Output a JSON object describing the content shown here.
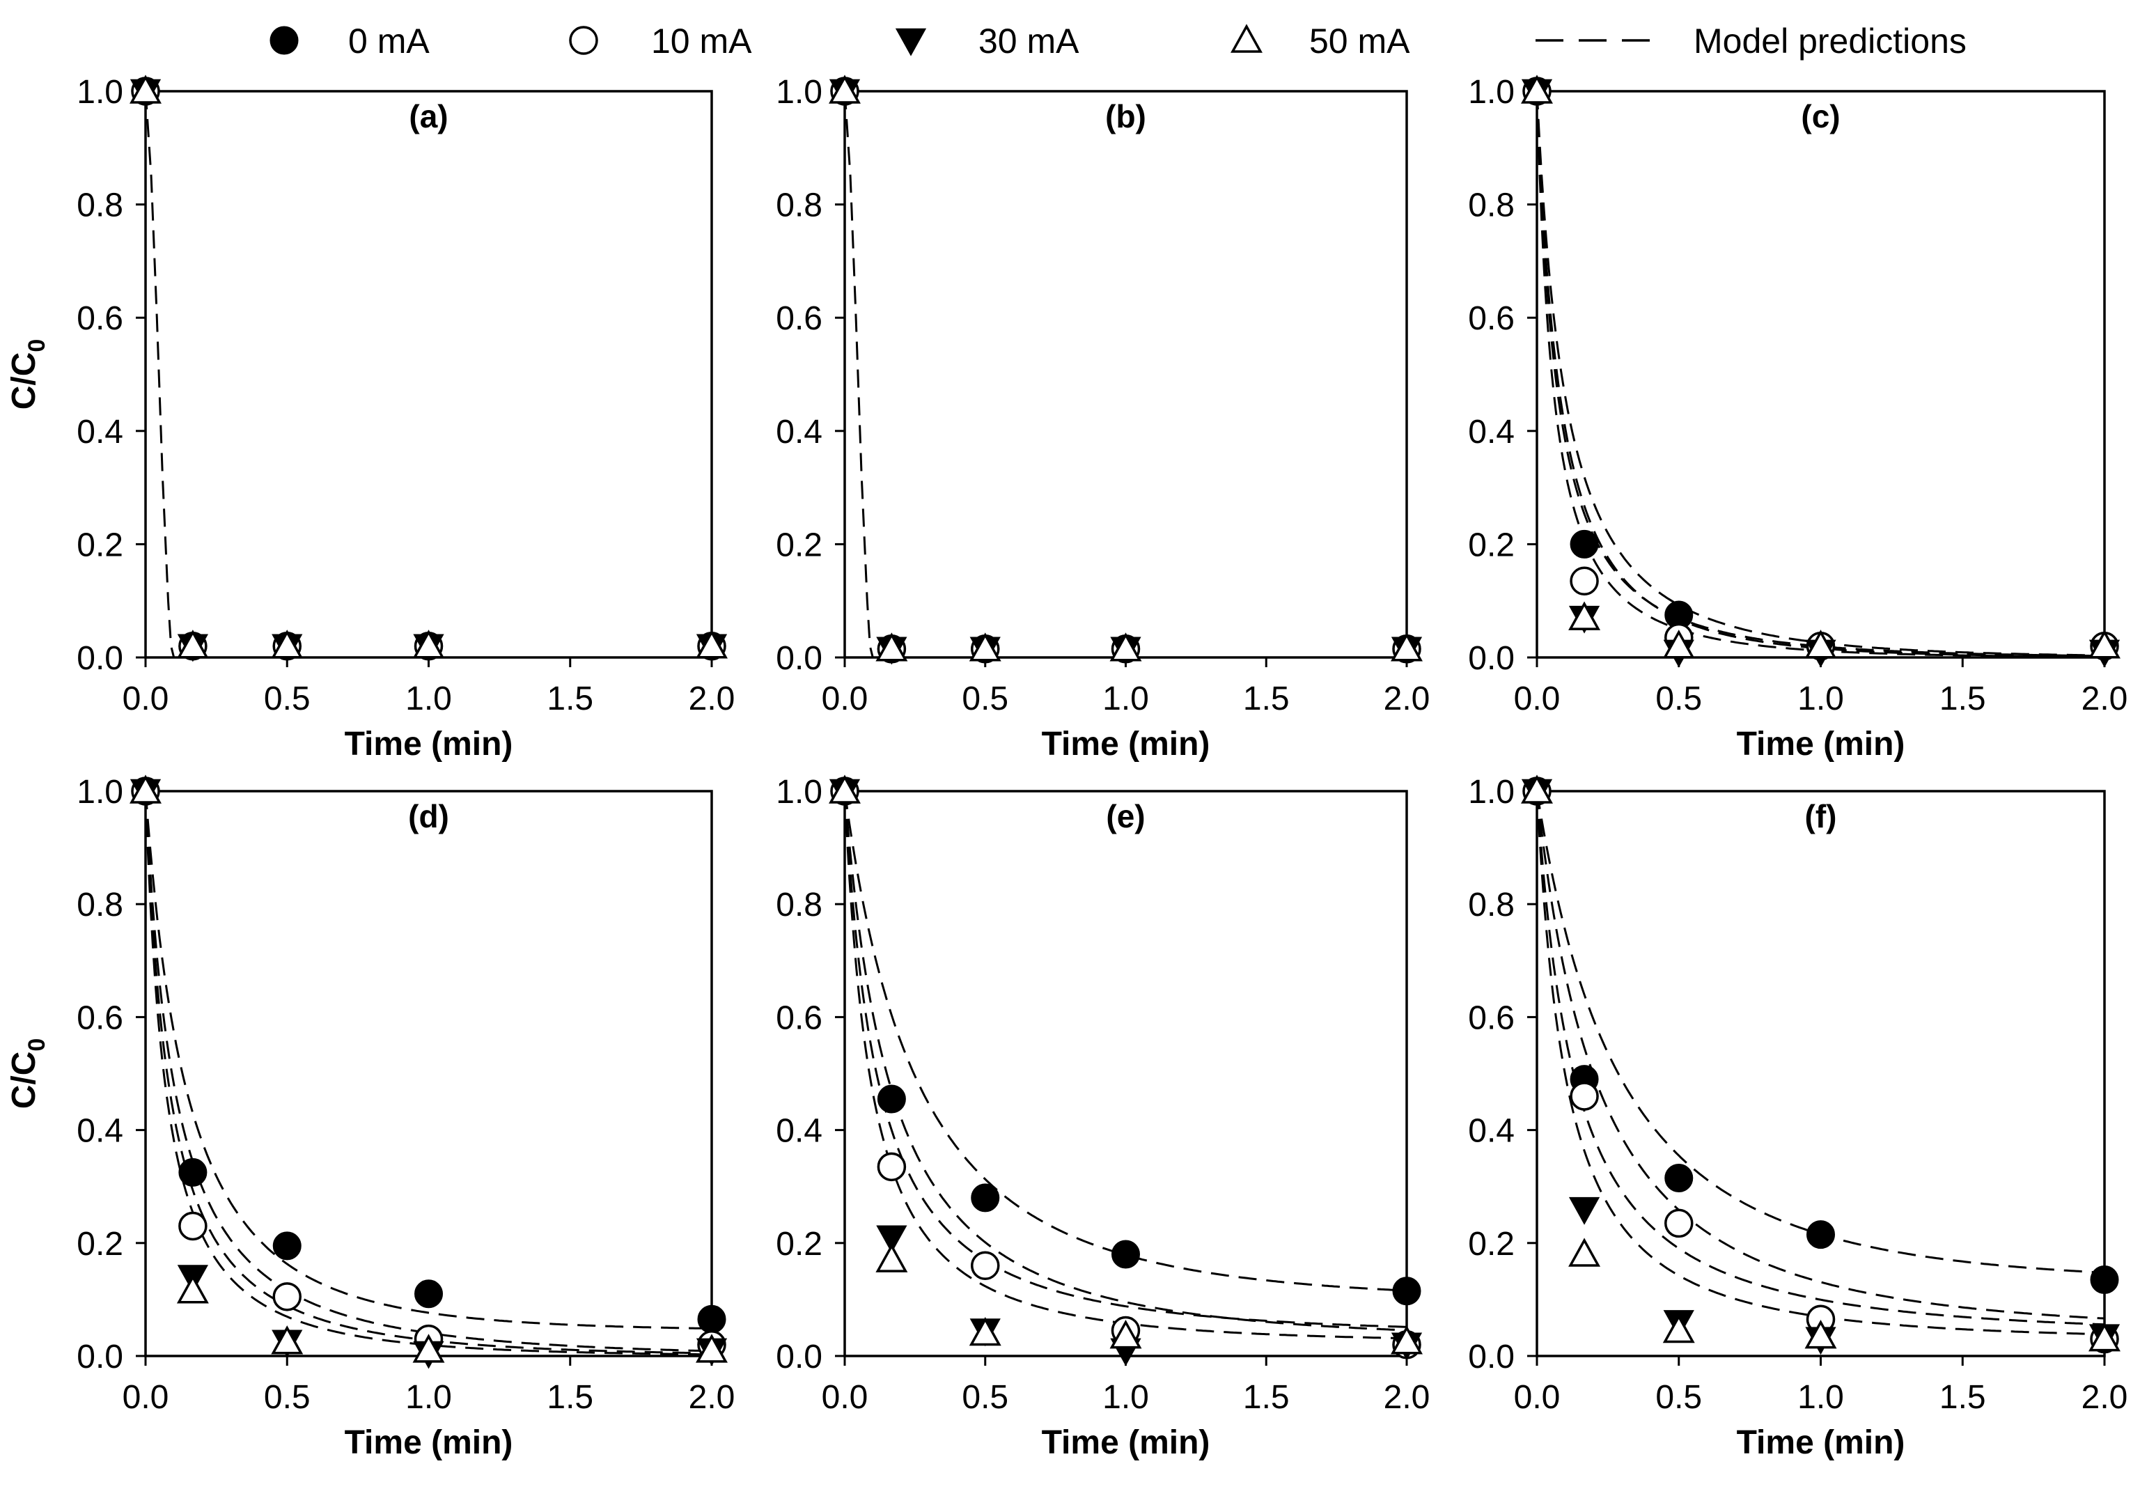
{
  "chart_data": {
    "type": "scatter",
    "legend": {
      "placement": "top",
      "items": [
        {
          "name": "0 mA",
          "marker": "filled-circle"
        },
        {
          "name": "10 mA",
          "marker": "open-circle"
        },
        {
          "name": "30 mA",
          "marker": "filled-triangle-down"
        },
        {
          "name": "50 mA",
          "marker": "open-triangle-up"
        },
        {
          "name": "Model predictions",
          "marker": "dashed-line"
        }
      ]
    },
    "panels": [
      {
        "label": "(a)",
        "xlabel": "Time (min)",
        "ylabel": "C/C",
        "ylabel_sub": "0",
        "show_ylabel": true,
        "xlim": [
          0,
          2.0
        ],
        "ylim": [
          0,
          1.0
        ],
        "xticks": [
          "0.0",
          "0.5",
          "1.0",
          "1.5",
          "2.0"
        ],
        "yticks": [
          "0.0",
          "0.2",
          "0.4",
          "0.6",
          "0.8",
          "1.0"
        ],
        "series": [
          {
            "name": "0 mA",
            "x": [
              0,
              0.167,
              0.5,
              1.0,
              2.0
            ],
            "y": [
              1.0,
              0.02,
              0.02,
              0.02,
              0.02
            ]
          },
          {
            "name": "10 mA",
            "x": [
              0,
              0.167,
              0.5,
              1.0,
              2.0
            ],
            "y": [
              1.0,
              0.02,
              0.02,
              0.02,
              0.02
            ]
          },
          {
            "name": "30 mA",
            "x": [
              0,
              0.167,
              0.5,
              1.0,
              2.0
            ],
            "y": [
              1.0,
              0.02,
              0.02,
              0.02,
              0.02
            ]
          },
          {
            "name": "50 mA",
            "x": [
              0,
              0.167,
              0.5,
              1.0,
              2.0
            ],
            "y": [
              1.0,
              0.02,
              0.02,
              0.02,
              0.02
            ]
          }
        ],
        "model_curves": [
          {
            "points": [
              [
                0,
                1.0
              ],
              [
                0.02,
                0.85
              ],
              [
                0.04,
                0.6
              ],
              [
                0.06,
                0.32
              ],
              [
                0.08,
                0.1
              ],
              [
                0.09,
                0.02
              ],
              [
                0.1,
                0.0
              ],
              [
                2.0,
                0.0
              ]
            ]
          }
        ]
      },
      {
        "label": "(b)",
        "xlabel": "Time (min)",
        "ylabel": "C/C",
        "ylabel_sub": "0",
        "show_ylabel": false,
        "xlim": [
          0,
          2.0
        ],
        "ylim": [
          0,
          1.0
        ],
        "xticks": [
          "0.0",
          "0.5",
          "1.0",
          "1.5",
          "2.0"
        ],
        "yticks": [
          "0.0",
          "0.2",
          "0.4",
          "0.6",
          "0.8",
          "1.0"
        ],
        "series": [
          {
            "name": "0 mA",
            "x": [
              0,
              0.167,
              0.5,
              1.0,
              2.0
            ],
            "y": [
              1.0,
              0.015,
              0.015,
              0.015,
              0.015
            ]
          },
          {
            "name": "10 mA",
            "x": [
              0,
              0.167,
              0.5,
              1.0,
              2.0
            ],
            "y": [
              1.0,
              0.015,
              0.015,
              0.015,
              0.015
            ]
          },
          {
            "name": "30 mA",
            "x": [
              0,
              0.167,
              0.5,
              1.0,
              2.0
            ],
            "y": [
              1.0,
              0.015,
              0.015,
              0.015,
              0.015
            ]
          },
          {
            "name": "50 mA",
            "x": [
              0,
              0.167,
              0.5,
              1.0,
              2.0
            ],
            "y": [
              1.0,
              0.015,
              0.015,
              0.015,
              0.015
            ]
          }
        ],
        "model_curves": [
          {
            "points": [
              [
                0,
                1.0
              ],
              [
                0.02,
                0.85
              ],
              [
                0.04,
                0.6
              ],
              [
                0.06,
                0.32
              ],
              [
                0.08,
                0.1
              ],
              [
                0.09,
                0.02
              ],
              [
                0.1,
                0.0
              ],
              [
                2.0,
                0.0
              ]
            ]
          }
        ]
      },
      {
        "label": "(c)",
        "xlabel": "Time (min)",
        "ylabel": "C/C",
        "ylabel_sub": "0",
        "show_ylabel": false,
        "xlim": [
          0,
          2.0
        ],
        "ylim": [
          0,
          1.0
        ],
        "xticks": [
          "0.0",
          "0.5",
          "1.0",
          "1.5",
          "2.0"
        ],
        "yticks": [
          "0.0",
          "0.2",
          "0.4",
          "0.6",
          "0.8",
          "1.0"
        ],
        "series": [
          {
            "name": "0 mA",
            "x": [
              0,
              0.167,
              0.5,
              1.0,
              2.0
            ],
            "y": [
              1.0,
              0.2,
              0.075,
              0.02,
              0.02
            ]
          },
          {
            "name": "10 mA",
            "x": [
              0,
              0.167,
              0.5,
              1.0,
              2.0
            ],
            "y": [
              1.0,
              0.135,
              0.035,
              0.02,
              0.02
            ]
          },
          {
            "name": "30 mA",
            "x": [
              0,
              0.167,
              0.5,
              1.0,
              2.0
            ],
            "y": [
              1.0,
              0.07,
              0.01,
              0.01,
              0.01
            ]
          },
          {
            "name": "50 mA",
            "x": [
              0,
              0.167,
              0.5,
              1.0,
              2.0
            ],
            "y": [
              1.0,
              0.07,
              0.02,
              0.02,
              0.02
            ]
          }
        ],
        "model_curves": [
          {
            "a": 1.0,
            "k": 9.0,
            "c": 0.0,
            "n": 0.85
          },
          {
            "a": 1.0,
            "k": 11.0,
            "c": 0.0,
            "n": 0.85
          },
          {
            "a": 1.0,
            "k": 13.0,
            "c": 0.0,
            "n": 0.9
          },
          {
            "a": 1.0,
            "k": 16.0,
            "c": 0.0,
            "n": 0.9
          }
        ]
      },
      {
        "label": "(d)",
        "xlabel": "Time (min)",
        "ylabel": "C/C",
        "ylabel_sub": "0",
        "show_ylabel": true,
        "xlim": [
          0,
          2.0
        ],
        "ylim": [
          0,
          1.0
        ],
        "xticks": [
          "0.0",
          "0.5",
          "1.0",
          "1.5",
          "2.0"
        ],
        "yticks": [
          "0.0",
          "0.2",
          "0.4",
          "0.6",
          "0.8",
          "1.0"
        ],
        "series": [
          {
            "name": "0 mA",
            "x": [
              0,
              0.167,
              0.5,
              1.0,
              2.0
            ],
            "y": [
              1.0,
              0.325,
              0.195,
              0.11,
              0.065
            ]
          },
          {
            "name": "10 mA",
            "x": [
              0,
              0.167,
              0.5,
              1.0,
              2.0
            ],
            "y": [
              1.0,
              0.23,
              0.105,
              0.03,
              0.02
            ]
          },
          {
            "name": "30 mA",
            "x": [
              0,
              0.167,
              0.5,
              1.0,
              2.0
            ],
            "y": [
              1.0,
              0.14,
              0.025,
              0.005,
              0.01
            ]
          },
          {
            "name": "50 mA",
            "x": [
              0,
              0.167,
              0.5,
              1.0,
              2.0
            ],
            "y": [
              1.0,
              0.115,
              0.025,
              0.01,
              0.01
            ]
          }
        ],
        "model_curves": [
          {
            "a": 1.0,
            "k": 5.5,
            "c": 0.045,
            "n": 0.72
          },
          {
            "a": 1.0,
            "k": 9.0,
            "c": 0.0,
            "n": 0.9
          },
          {
            "a": 1.0,
            "k": 11.0,
            "c": 0.0,
            "n": 0.9
          },
          {
            "a": 1.0,
            "k": 13.0,
            "c": 0.0,
            "n": 0.9
          }
        ]
      },
      {
        "label": "(e)",
        "xlabel": "Time (min)",
        "ylabel": "C/C",
        "ylabel_sub": "0",
        "show_ylabel": false,
        "xlim": [
          0,
          2.0
        ],
        "ylim": [
          0,
          1.0
        ],
        "xticks": [
          "0.0",
          "0.5",
          "1.0",
          "1.5",
          "2.0"
        ],
        "yticks": [
          "0.0",
          "0.2",
          "0.4",
          "0.6",
          "0.8",
          "1.0"
        ],
        "series": [
          {
            "name": "0 mA",
            "x": [
              0,
              0.167,
              0.5,
              1.0,
              2.0
            ],
            "y": [
              1.0,
              0.455,
              0.28,
              0.18,
              0.115
            ]
          },
          {
            "name": "10 mA",
            "x": [
              0,
              0.167,
              0.5,
              1.0,
              2.0
            ],
            "y": [
              1.0,
              0.335,
              0.16,
              0.045,
              0.02
            ]
          },
          {
            "name": "30 mA",
            "x": [
              0,
              0.167,
              0.5,
              1.0,
              2.0
            ],
            "y": [
              1.0,
              0.21,
              0.045,
              0.01,
              0.02
            ]
          },
          {
            "name": "50 mA",
            "x": [
              0,
              0.167,
              0.5,
              1.0,
              2.0
            ],
            "y": [
              1.0,
              0.17,
              0.04,
              0.035,
              0.025
            ]
          }
        ],
        "model_curves": [
          {
            "a": 1.0,
            "k": 3.0,
            "c": 0.1,
            "n": 0.65
          },
          {
            "a": 1.0,
            "k": 5.5,
            "c": 0.03,
            "n": 0.85
          },
          {
            "a": 1.0,
            "k": 8.0,
            "c": 0.04,
            "n": 0.9
          },
          {
            "a": 1.0,
            "k": 10.0,
            "c": 0.025,
            "n": 0.9
          }
        ]
      },
      {
        "label": "(f)",
        "xlabel": "Time (min)",
        "ylabel": "C/C",
        "ylabel_sub": "0",
        "show_ylabel": false,
        "xlim": [
          0,
          2.0
        ],
        "ylim": [
          0,
          1.0
        ],
        "xticks": [
          "0.0",
          "0.5",
          "1.0",
          "1.5",
          "2.0"
        ],
        "yticks": [
          "0.0",
          "0.2",
          "0.4",
          "0.6",
          "0.8",
          "1.0"
        ],
        "series": [
          {
            "name": "0 mA",
            "x": [
              0,
              0.167,
              0.5,
              1.0,
              2.0
            ],
            "y": [
              1.0,
              0.49,
              0.315,
              0.215,
              0.135
            ]
          },
          {
            "name": "10 mA",
            "x": [
              0,
              0.167,
              0.5,
              1.0,
              2.0
            ],
            "y": [
              1.0,
              0.46,
              0.235,
              0.065,
              0.03
            ]
          },
          {
            "name": "30 mA",
            "x": [
              0,
              0.167,
              0.5,
              1.0,
              2.0
            ],
            "y": [
              1.0,
              0.26,
              0.06,
              0.03,
              0.035
            ]
          },
          {
            "name": "50 mA",
            "x": [
              0,
              0.167,
              0.5,
              1.0,
              2.0
            ],
            "y": [
              1.0,
              0.18,
              0.045,
              0.035,
              0.03
            ]
          }
        ],
        "model_curves": [
          {
            "a": 1.0,
            "k": 2.6,
            "c": 0.13,
            "n": 0.6
          },
          {
            "a": 1.0,
            "k": 4.0,
            "c": 0.045,
            "n": 0.8
          },
          {
            "a": 1.0,
            "k": 7.0,
            "c": 0.04,
            "n": 0.9
          },
          {
            "a": 1.0,
            "k": 9.0,
            "c": 0.03,
            "n": 0.9
          }
        ]
      }
    ]
  }
}
